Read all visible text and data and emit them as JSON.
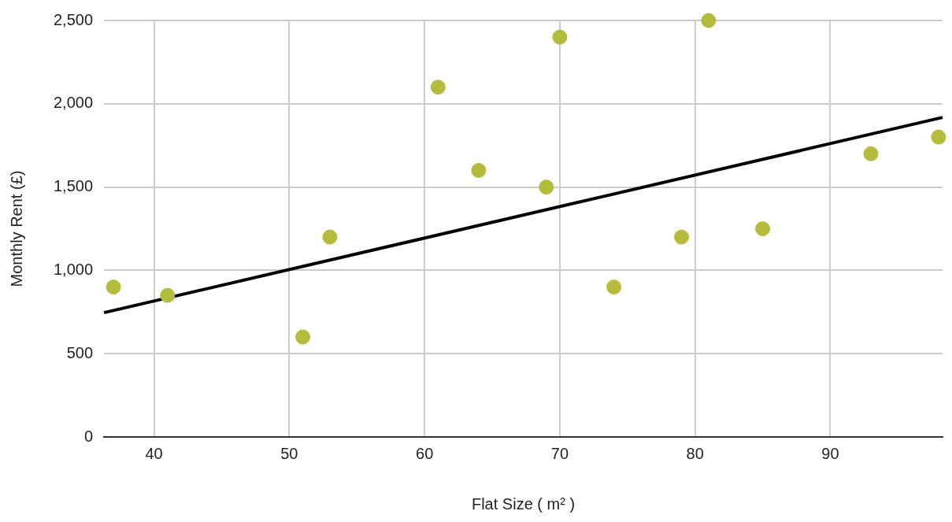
{
  "chart_data": {
    "type": "scatter",
    "xlabel": "Flat Size ( m² )",
    "ylabel": "Monthly Rent (£)",
    "xlim": [
      36.3,
      98.3
    ],
    "xticks": [
      40,
      50,
      60,
      70,
      80,
      90
    ],
    "ylim": [
      0,
      2500
    ],
    "yticks": [
      0,
      {
        "value": 500,
        "label": "500"
      },
      {
        "value": 1000,
        "label": "1,000"
      },
      {
        "value": 1500,
        "label": "1,500"
      },
      {
        "value": 2000,
        "label": "2,000"
      },
      {
        "value": 2500,
        "label": "2,500"
      }
    ],
    "grid": true,
    "legend": false,
    "marker": "circle",
    "series": [
      {
        "color": "#b5bb3b",
        "x": [
          37,
          41,
          51,
          53,
          61,
          64,
          69,
          70,
          74,
          79,
          81,
          85,
          93,
          98
        ],
        "values": [
          900,
          850,
          600,
          1200,
          2100,
          1600,
          1500,
          2400,
          900,
          1200,
          2500,
          1250,
          1700,
          1800
        ]
      },
      {
        "type": "line",
        "color": "#000000",
        "line_style": "solid",
        "marker": "none",
        "x": [
          36.3,
          98.3
        ],
        "values": [
          746,
          1918
        ]
      }
    ]
  }
}
